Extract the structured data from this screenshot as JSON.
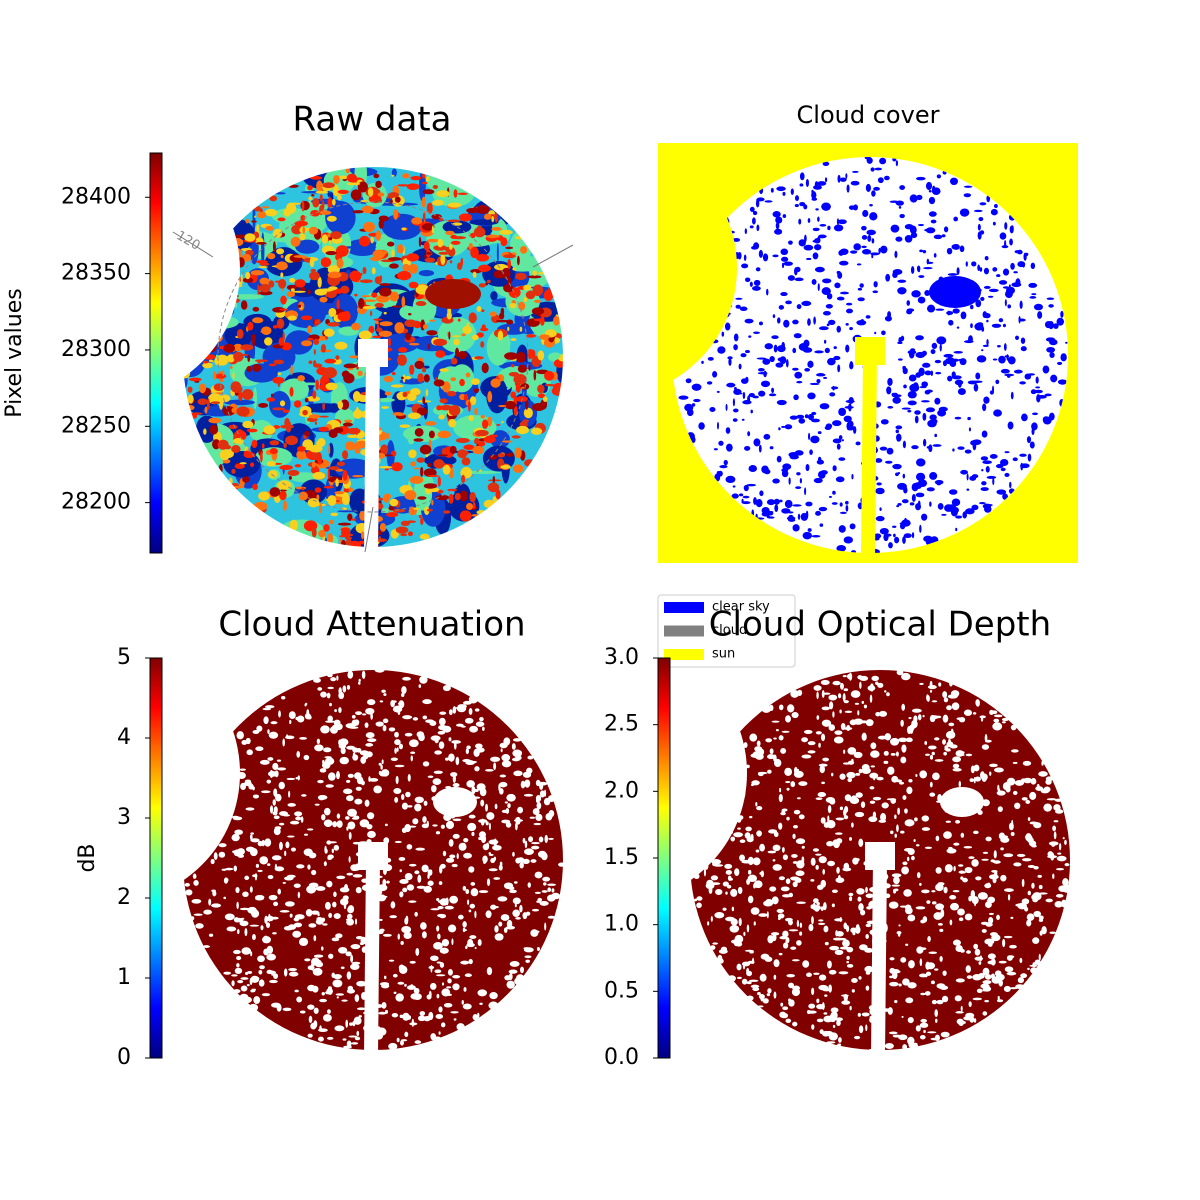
{
  "chart_data": [
    {
      "type": "image",
      "title": "Raw data",
      "annotations": [
        "120"
      ],
      "colorbar": {
        "label": "Pixel values",
        "colormap": "jet",
        "lim": [
          28167,
          28429
        ],
        "ticks": [
          28200,
          28250,
          28300,
          28350,
          28400
        ]
      }
    },
    {
      "type": "categorical-image",
      "title": "Cloud cover",
      "legend": [
        {
          "name": "clear sky",
          "color": "#0000ff"
        },
        {
          "name": "cloud",
          "color": "#808080"
        },
        {
          "name": "sun",
          "color": "#ffff00"
        }
      ]
    },
    {
      "type": "image",
      "title": "Cloud Attenuation",
      "colorbar": {
        "label": "dB",
        "colormap": "jet",
        "lim": [
          0,
          5
        ],
        "ticks": [
          0,
          1,
          2,
          3,
          4,
          5
        ]
      }
    },
    {
      "type": "image",
      "title": "Cloud Optical Depth",
      "colorbar": {
        "colormap": "jet",
        "lim": [
          0,
          3
        ],
        "ticks": [
          {
            "value": 0,
            "label": "0.0"
          },
          0.5,
          {
            "value": 1,
            "label": "1.0"
          },
          1.5,
          {
            "value": 2,
            "label": "2.0"
          },
          2.5,
          {
            "value": 3,
            "label": "3.0"
          }
        ]
      }
    }
  ]
}
